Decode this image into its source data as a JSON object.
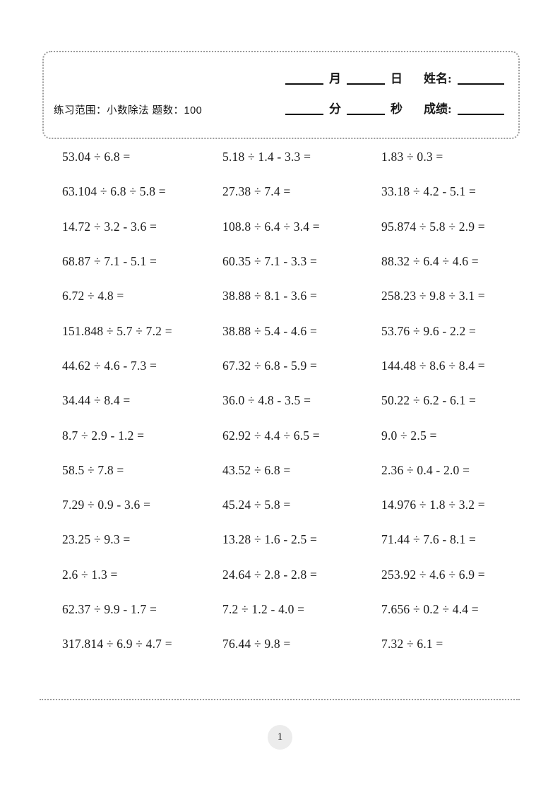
{
  "header": {
    "range_label": "练习范围：小数除法 题数：100",
    "month": "月",
    "day": "日",
    "name_label": "姓名:",
    "minute": "分",
    "second": "秒",
    "score_label": "成绩:"
  },
  "problems": {
    "rows": [
      [
        "53.04 ÷ 6.8 =",
        "5.18 ÷ 1.4 - 3.3 =",
        "1.83 ÷ 0.3 ="
      ],
      [
        "63.104 ÷ 6.8 ÷ 5.8 =",
        "27.38 ÷ 7.4 =",
        "33.18 ÷ 4.2 - 5.1 ="
      ],
      [
        "14.72 ÷ 3.2 - 3.6 =",
        "108.8 ÷ 6.4 ÷ 3.4 =",
        "95.874 ÷ 5.8 ÷ 2.9 ="
      ],
      [
        "68.87 ÷ 7.1 - 5.1 =",
        "60.35 ÷ 7.1 - 3.3 =",
        "88.32 ÷ 6.4 ÷ 4.6 ="
      ],
      [
        "6.72 ÷ 4.8 =",
        "38.88 ÷ 8.1 - 3.6 =",
        "258.23 ÷ 9.8 ÷ 3.1 ="
      ],
      [
        "151.848 ÷ 5.7 ÷ 7.2 =",
        "38.88 ÷ 5.4 - 4.6 =",
        "53.76 ÷ 9.6 - 2.2 ="
      ],
      [
        "44.62 ÷ 4.6 - 7.3 =",
        "67.32 ÷ 6.8 - 5.9 =",
        "144.48 ÷ 8.6 ÷ 8.4 ="
      ],
      [
        "34.44 ÷ 8.4 =",
        "36.0 ÷ 4.8 - 3.5 =",
        "50.22 ÷ 6.2 - 6.1 ="
      ],
      [
        "8.7 ÷ 2.9 - 1.2 =",
        "62.92 ÷ 4.4 ÷ 6.5 =",
        "9.0 ÷ 2.5 ="
      ],
      [
        "58.5 ÷ 7.8 =",
        "43.52 ÷ 6.8 =",
        "2.36 ÷ 0.4 - 2.0 ="
      ],
      [
        "7.29 ÷ 0.9 - 3.6 =",
        "45.24 ÷ 5.8 =",
        "14.976 ÷ 1.8 ÷ 3.2 ="
      ],
      [
        "23.25 ÷ 9.3 =",
        "13.28 ÷ 1.6 - 2.5 =",
        "71.44 ÷ 7.6 - 8.1 ="
      ],
      [
        "2.6 ÷ 1.3 =",
        "24.64 ÷ 2.8 - 2.8 =",
        "253.92 ÷ 4.6 ÷ 6.9 ="
      ],
      [
        "62.37 ÷ 9.9 - 1.7 =",
        "7.2 ÷ 1.2 - 4.0 =",
        "7.656 ÷ 0.2 ÷ 4.4 ="
      ],
      [
        "317.814 ÷ 6.9 ÷ 4.7 =",
        "76.44 ÷ 9.8 =",
        "7.32 ÷ 6.1 ="
      ]
    ]
  },
  "footer": {
    "page_number": "1"
  },
  "colors": {
    "text": "#1a1a1a",
    "dotted_border": "#9a9a9a",
    "page_badge_bg": "#ececec",
    "background": "#ffffff"
  }
}
